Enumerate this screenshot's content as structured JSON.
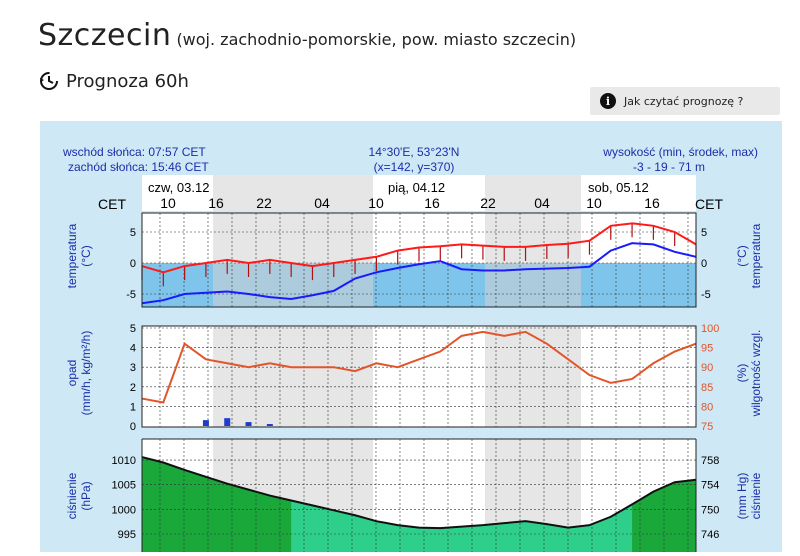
{
  "header": {
    "city": "Szczecin",
    "subtitle": "(woj. zachodnio-pomorskie, pow. miasto szczecin)",
    "forecast_label": "Prognoza 60h",
    "help_label": "Jak czytać prognozę ?"
  },
  "meteogram": {
    "sunrise": "wschód słońca: 07:57 CET",
    "sunset": "zachód słońca: 15:46 CET",
    "coords": "14°30'E, 53°23'N",
    "grid": "(x=142, y=370)",
    "elev_title": "wysokość (min, środek, max)",
    "elev_values": "-3 - 19 - 71 m",
    "tz": "CET",
    "days": [
      "czw, 03.12",
      "pią, 04.12",
      "sob, 05.12"
    ],
    "hours": [
      "10",
      "16",
      "22",
      "04",
      "10",
      "16",
      "22",
      "04",
      "10",
      "16"
    ],
    "temp": {
      "label": "temperatura",
      "unit": "(°C)",
      "ticks": [
        "5",
        "0",
        "-5"
      ],
      "values_max": [
        -0.5,
        -1.5,
        -0.5,
        0.0,
        0.5,
        0.0,
        0.5,
        0.0,
        -0.5,
        0.0,
        0.5,
        1.0,
        2.0,
        2.5,
        2.7,
        3.0,
        2.8,
        2.6,
        2.6,
        2.9,
        3.1,
        3.6,
        6.0,
        6.4,
        6.0,
        5.0,
        3.0
      ],
      "values_min": [
        -6.5,
        -6.0,
        -5.0,
        -4.8,
        -4.6,
        -5.0,
        -5.5,
        -5.8,
        -5.2,
        -4.5,
        -2.5,
        -1.5,
        -0.8,
        -0.2,
        0.3,
        -1.0,
        -1.2,
        -1.2,
        -1.0,
        -0.9,
        -0.8,
        -0.6,
        2.0,
        3.2,
        3.0,
        1.8,
        1.0
      ]
    },
    "precip": {
      "label": "opad",
      "unit": "(mm/h, kg/m²/h)",
      "ticks": [
        "5",
        "4",
        "3",
        "2",
        "1",
        "0"
      ],
      "humidity_label": "wilgotność wzgl.",
      "humidity_unit": "(%)",
      "humidity_ticks": [
        "100",
        "95",
        "90",
        "85",
        "80",
        "75"
      ],
      "humidity": [
        82,
        81,
        96,
        92,
        91,
        90,
        91,
        90,
        90,
        90,
        89,
        91,
        90,
        92,
        94,
        98,
        99,
        98,
        99,
        96,
        92,
        88,
        86,
        87,
        91,
        94,
        96
      ],
      "rain": [
        0,
        0,
        0,
        0.3,
        0.4,
        0.2,
        0.1,
        0,
        0,
        0,
        0,
        0,
        0,
        0,
        0,
        0,
        0,
        0,
        0,
        0,
        0,
        0,
        0,
        0,
        0,
        0,
        0
      ]
    },
    "pressure": {
      "label": "ciśnienie",
      "unit_hpa": "(hPa)",
      "unit_mmhg": "(mm Hg)",
      "ticks_hpa": [
        "1010",
        "1005",
        "1000",
        "995"
      ],
      "ticks_mmhg": [
        "758",
        "754",
        "750",
        "746"
      ],
      "values": [
        1010.6,
        1009.5,
        1008.0,
        1006.6,
        1005.2,
        1004.0,
        1002.8,
        1001.8,
        1000.8,
        999.8,
        998.8,
        997.6,
        996.8,
        996.3,
        996.2,
        996.5,
        996.8,
        997.2,
        997.6,
        997.0,
        996.3,
        996.8,
        998.5,
        1001.0,
        1003.6,
        1005.5,
        1006.0
      ]
    }
  },
  "colors": {
    "temp_max": "#ff1a1a",
    "temp_min": "#1a1aff",
    "humidity": "#e2552a",
    "rain": "#1e3cc8"
  }
}
